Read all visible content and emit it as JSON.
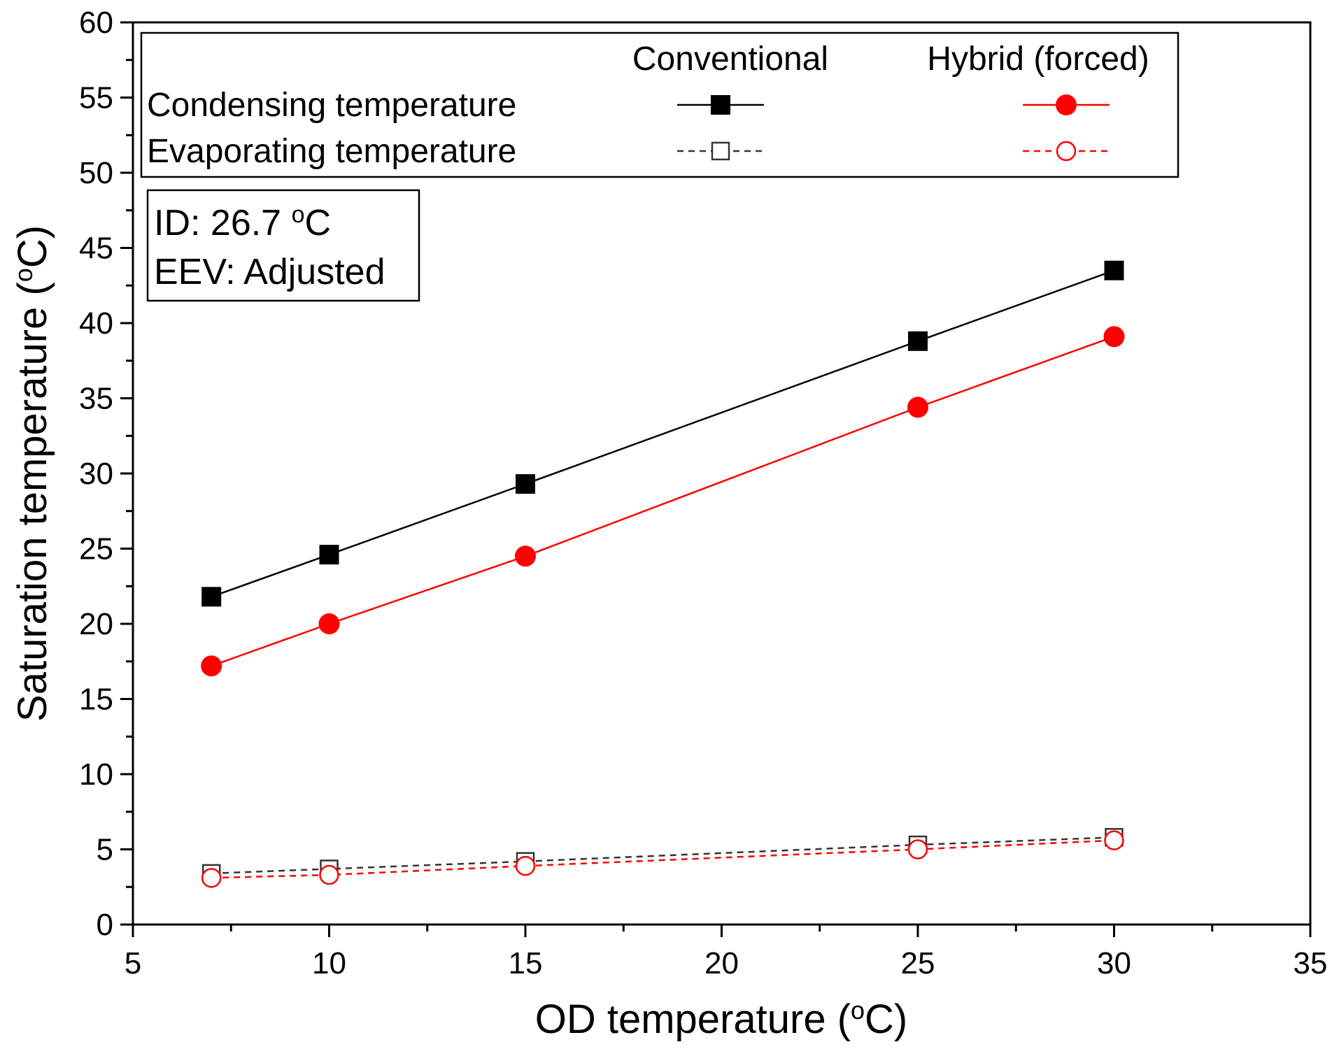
{
  "chart_data": {
    "type": "line",
    "xlabel": "OD temperature (",
    "xlabel_sup": "o",
    "xlabel_tail": "C)",
    "ylabel": "Saturation temperature (",
    "ylabel_sup": "o",
    "ylabel_tail": "C)",
    "xlim": [
      5,
      35
    ],
    "ylim": [
      0,
      60
    ],
    "xticks": [
      5,
      10,
      15,
      20,
      25,
      30,
      35
    ],
    "yticks": [
      0,
      5,
      10,
      15,
      20,
      25,
      30,
      35,
      40,
      45,
      50,
      55,
      60
    ],
    "x": [
      7,
      10,
      15,
      25,
      30
    ],
    "legend": {
      "col_headers": [
        "Conventional",
        "Hybrid (forced)"
      ],
      "row_labels": [
        "Condensing temperature",
        "Evaporating temperature"
      ]
    },
    "annotation": {
      "line1": "ID: 26.7 ",
      "line1_sup": "o",
      "line1_tail": "C",
      "line2": "EEV: Adjusted"
    },
    "series": [
      {
        "name": "Conventional condensing temperature",
        "values": [
          21.8,
          24.6,
          29.3,
          38.8,
          43.5
        ],
        "color": "#000000",
        "marker": "square-filled",
        "dash": "solid"
      },
      {
        "name": "Hybrid (forced) condensing temperature",
        "values": [
          17.2,
          20.0,
          24.5,
          34.4,
          39.1
        ],
        "color": "#ff0000",
        "marker": "circle-filled",
        "dash": "solid"
      },
      {
        "name": "Conventional evaporating temperature",
        "values": [
          3.4,
          3.7,
          4.2,
          5.3,
          5.8
        ],
        "color": "#333333",
        "marker": "square-open",
        "dash": "dashed"
      },
      {
        "name": "Hybrid (forced) evaporating temperature",
        "values": [
          3.1,
          3.3,
          3.9,
          5.0,
          5.6
        ],
        "color": "#ff0000",
        "marker": "circle-open",
        "dash": "dashed"
      }
    ]
  }
}
